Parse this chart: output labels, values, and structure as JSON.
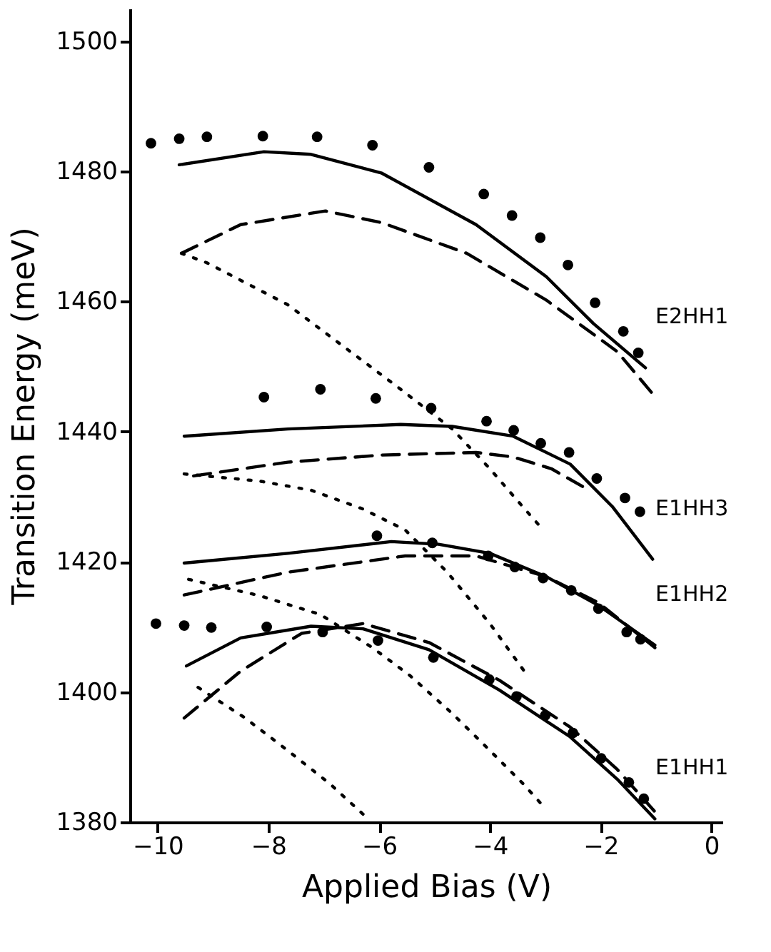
{
  "chart_data": {
    "type": "line",
    "xlabel": "Applied Bias (V)",
    "ylabel": "Transition Energy (meV)",
    "xlim": [
      -10.5,
      0.2
    ],
    "ylim": [
      1380,
      1505
    ],
    "xticks": [
      -10,
      -8,
      -6,
      -4,
      -2,
      0
    ],
    "yticks": [
      1380,
      1400,
      1420,
      1440,
      1460,
      1480,
      1500
    ],
    "grid": false,
    "series": [
      {
        "type": "scatter",
        "marker": "circle",
        "color": "#000000",
        "x": [
          -10.12,
          -9.61,
          -9.11,
          -8.1,
          -7.12,
          -6.12,
          -5.1,
          -4.11,
          -3.6,
          -3.09,
          -2.59,
          -2.1,
          -1.59,
          -1.32,
          -8.08,
          -7.06,
          -6.06,
          -5.06,
          -4.06,
          -3.57,
          -3.08,
          -2.57,
          -2.07,
          -1.56,
          -1.29,
          -6.04,
          -5.04,
          -4.03,
          -3.55,
          -3.04,
          -2.53,
          -2.04,
          -1.53,
          -1.28,
          -10.03,
          -9.52,
          -9.03,
          -8.03,
          -7.02,
          -6.02,
          -5.02,
          -4.01,
          -3.52,
          -3.0,
          -2.5,
          -1.99,
          -1.49,
          -1.22
        ],
        "values": [
          1484.3,
          1485.0,
          1485.3,
          1485.4,
          1485.3,
          1484.0,
          1480.6,
          1476.5,
          1473.2,
          1469.8,
          1465.6,
          1459.8,
          1455.4,
          1452.1,
          1445.3,
          1446.5,
          1445.1,
          1443.6,
          1441.6,
          1440.2,
          1438.2,
          1436.8,
          1432.8,
          1429.8,
          1427.7,
          1424.0,
          1422.9,
          1420.9,
          1419.2,
          1417.5,
          1415.6,
          1412.8,
          1409.2,
          1408.1,
          1410.5,
          1410.2,
          1409.9,
          1410.0,
          1409.2,
          1407.9,
          1405.3,
          1401.9,
          1399.3,
          1396.4,
          1393.7,
          1389.8,
          1386.1,
          1383.6
        ]
      },
      {
        "line_style": "solid",
        "color": "#000000",
        "x": [
          -9.61,
          -8.08,
          -7.23,
          -5.95,
          -4.25,
          -2.98,
          -2.13,
          -1.19
        ],
        "values": [
          1481.0,
          1483.0,
          1482.6,
          1479.7,
          1471.8,
          1463.8,
          1456.6,
          1449.8
        ]
      },
      {
        "line_style": "dashed",
        "color": "#000000",
        "x": [
          -9.57,
          -8.5,
          -6.97,
          -5.95,
          -4.42,
          -2.98,
          -1.7,
          -1.06
        ],
        "values": [
          1467.4,
          1471.8,
          1473.9,
          1472.1,
          1467.4,
          1460.2,
          1452.3,
          1445.8
        ]
      },
      {
        "line_style": "dotted",
        "color": "#000000",
        "x": [
          -9.57,
          -9.1,
          -7.65,
          -6.63,
          -5.61,
          -4.68,
          -4.0,
          -3.41,
          -3.07
        ],
        "values": [
          1467.4,
          1465.9,
          1459.5,
          1453.0,
          1446.5,
          1440.4,
          1434.3,
          1428.5,
          1425.2
        ]
      },
      {
        "line_style": "solid",
        "color": "#000000",
        "x": [
          -9.52,
          -7.65,
          -5.61,
          -4.68,
          -3.58,
          -2.55,
          -1.79,
          -1.06
        ],
        "values": [
          1439.3,
          1440.4,
          1441.1,
          1440.8,
          1439.3,
          1435.0,
          1428.5,
          1420.4
        ]
      },
      {
        "line_style": "dashed",
        "color": "#000000",
        "x": [
          -9.35,
          -7.65,
          -5.95,
          -4.25,
          -3.58,
          -2.89,
          -2.29
        ],
        "values": [
          1433.2,
          1435.3,
          1436.4,
          1436.8,
          1436.1,
          1434.3,
          1431.4
        ]
      },
      {
        "line_style": "dotted",
        "color": "#000000",
        "x": [
          -9.52,
          -8.16,
          -7.23,
          -6.29,
          -5.53,
          -4.77,
          -4.0,
          -3.32
        ],
        "values": [
          1433.5,
          1432.4,
          1431.0,
          1428.1,
          1424.9,
          1418.4,
          1410.5,
          1402.5
        ]
      },
      {
        "line_style": "solid",
        "color": "#000000",
        "x": [
          -9.52,
          -7.65,
          -5.78,
          -4.93,
          -4.0,
          -2.98,
          -2.04,
          -1.02
        ],
        "values": [
          1419.8,
          1421.3,
          1423.1,
          1422.7,
          1421.3,
          1417.7,
          1413.3,
          1407.2
        ]
      },
      {
        "line_style": "dashed",
        "color": "#000000",
        "x": [
          -9.52,
          -7.65,
          -5.53,
          -4.25,
          -2.98,
          -2.04,
          -1.02
        ],
        "values": [
          1414.9,
          1418.4,
          1420.9,
          1420.9,
          1417.7,
          1413.7,
          1406.8
        ]
      },
      {
        "line_style": "dotted",
        "color": "#000000",
        "x": [
          -9.44,
          -8.16,
          -7.06,
          -6.12,
          -5.44,
          -4.68,
          -4.0,
          -3.4,
          -3.02
        ],
        "values": [
          1417.3,
          1414.8,
          1411.9,
          1406.8,
          1402.5,
          1396.7,
          1391.0,
          1385.9,
          1382.3
        ]
      },
      {
        "line_style": "solid",
        "color": "#000000",
        "x": [
          -9.48,
          -8.5,
          -7.23,
          -6.29,
          -5.1,
          -3.83,
          -2.55,
          -1.7,
          -1.02
        ],
        "values": [
          1404.0,
          1408.3,
          1410.1,
          1409.7,
          1406.5,
          1400.3,
          1393.1,
          1386.6,
          1380.5
        ]
      },
      {
        "line_style": "dashed",
        "color": "#000000",
        "x": [
          -9.52,
          -8.5,
          -7.4,
          -6.29,
          -5.1,
          -3.83,
          -2.55,
          -1.7,
          -1.02
        ],
        "values": [
          1396.0,
          1403.2,
          1409.0,
          1410.5,
          1407.6,
          1401.8,
          1394.6,
          1388.1,
          1381.6
        ]
      },
      {
        "line_style": "dotted",
        "color": "#000000",
        "x": [
          -9.27,
          -8.42,
          -7.65,
          -6.89,
          -6.16
        ],
        "values": [
          1400.7,
          1396.0,
          1391.0,
          1385.9,
          1380.2
        ]
      }
    ],
    "annotations": [
      "E2HH1",
      "E1HH3",
      "E1HH2",
      "E1HH1"
    ]
  }
}
